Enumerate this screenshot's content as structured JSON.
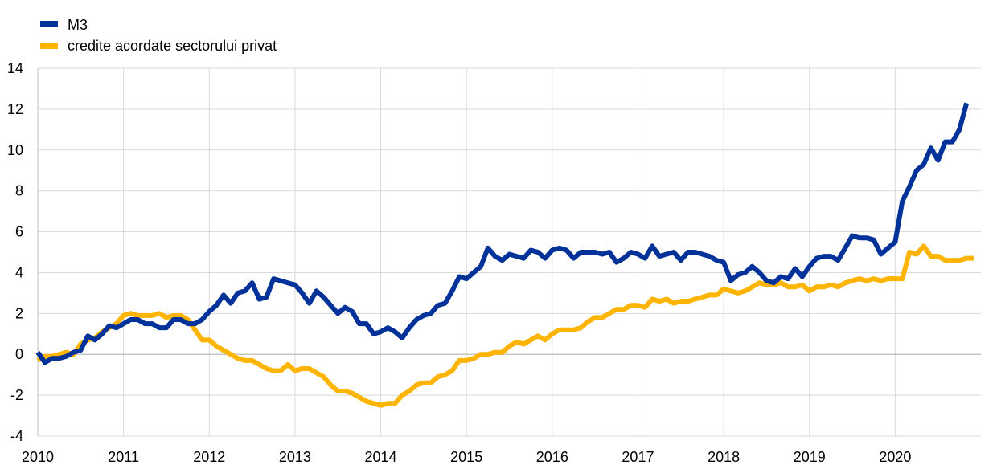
{
  "chart_data": {
    "type": "line",
    "title": "",
    "xlabel": "",
    "ylabel": "",
    "xlim": [
      "2010-01",
      "2020-12"
    ],
    "ylim": [
      -4,
      14
    ],
    "yticks": [
      -4,
      -2,
      0,
      2,
      4,
      6,
      8,
      10,
      12,
      14
    ],
    "ytick_labels": [
      "-4",
      "-2",
      "0",
      "2",
      "4",
      "6",
      "8",
      "10",
      "12",
      "14"
    ],
    "xtick_labels": [
      "2010",
      "2011",
      "2012",
      "2013",
      "2014",
      "2015",
      "2016",
      "2017",
      "2018",
      "2019",
      "2020"
    ],
    "grid": true,
    "legend_position": "top-left",
    "series": [
      {
        "name": "M3",
        "color": "#003299",
        "x": [
          "2010-01",
          "2010-02",
          "2010-03",
          "2010-04",
          "2010-05",
          "2010-06",
          "2010-07",
          "2010-08",
          "2010-09",
          "2010-10",
          "2010-11",
          "2010-12",
          "2011-01",
          "2011-02",
          "2011-03",
          "2011-04",
          "2011-05",
          "2011-06",
          "2011-07",
          "2011-08",
          "2011-09",
          "2011-10",
          "2011-11",
          "2011-12",
          "2012-01",
          "2012-02",
          "2012-03",
          "2012-04",
          "2012-05",
          "2012-06",
          "2012-07",
          "2012-08",
          "2012-09",
          "2012-10",
          "2012-11",
          "2012-12",
          "2013-01",
          "2013-02",
          "2013-03",
          "2013-04",
          "2013-05",
          "2013-06",
          "2013-07",
          "2013-08",
          "2013-09",
          "2013-10",
          "2013-11",
          "2013-12",
          "2014-01",
          "2014-02",
          "2014-03",
          "2014-04",
          "2014-05",
          "2014-06",
          "2014-07",
          "2014-08",
          "2014-09",
          "2014-10",
          "2014-11",
          "2014-12",
          "2015-01",
          "2015-02",
          "2015-03",
          "2015-04",
          "2015-05",
          "2015-06",
          "2015-07",
          "2015-08",
          "2015-09",
          "2015-10",
          "2015-11",
          "2015-12",
          "2016-01",
          "2016-02",
          "2016-03",
          "2016-04",
          "2016-05",
          "2016-06",
          "2016-07",
          "2016-08",
          "2016-09",
          "2016-10",
          "2016-11",
          "2016-12",
          "2017-01",
          "2017-02",
          "2017-03",
          "2017-04",
          "2017-05",
          "2017-06",
          "2017-07",
          "2017-08",
          "2017-09",
          "2017-10",
          "2017-11",
          "2017-12",
          "2018-01",
          "2018-02",
          "2018-03",
          "2018-04",
          "2018-05",
          "2018-06",
          "2018-07",
          "2018-08",
          "2018-09",
          "2018-10",
          "2018-11",
          "2018-12",
          "2019-01",
          "2019-02",
          "2019-03",
          "2019-04",
          "2019-05",
          "2019-06",
          "2019-07",
          "2019-08",
          "2019-09",
          "2019-10",
          "2019-11",
          "2019-12",
          "2020-01",
          "2020-02",
          "2020-03",
          "2020-04",
          "2020-05",
          "2020-06",
          "2020-07",
          "2020-08",
          "2020-09",
          "2020-10",
          "2020-11",
          "2020-12"
        ],
        "values": [
          0.1,
          -0.4,
          -0.2,
          -0.2,
          -0.1,
          0.1,
          0.2,
          0.9,
          0.7,
          1.0,
          1.4,
          1.3,
          1.5,
          1.7,
          1.7,
          1.5,
          1.5,
          1.3,
          1.3,
          1.7,
          1.7,
          1.5,
          1.5,
          1.7,
          2.1,
          2.4,
          2.9,
          2.5,
          3.0,
          3.1,
          3.5,
          2.7,
          2.8,
          3.7,
          3.6,
          3.5,
          3.4,
          3.0,
          2.5,
          3.1,
          2.8,
          2.4,
          2.0,
          2.3,
          2.1,
          1.5,
          1.5,
          1.0,
          1.1,
          1.3,
          1.1,
          0.8,
          1.3,
          1.7,
          1.9,
          2.0,
          2.4,
          2.5,
          3.1,
          3.8,
          3.7,
          4.0,
          4.3,
          5.2,
          4.8,
          4.6,
          4.9,
          4.8,
          4.7,
          5.1,
          5.0,
          4.7,
          5.1,
          5.2,
          5.1,
          4.7,
          5.0,
          5.0,
          5.0,
          4.9,
          5.0,
          4.5,
          4.7,
          5.0,
          4.9,
          4.7,
          5.3,
          4.8,
          4.9,
          5.0,
          4.6,
          5.0,
          5.0,
          4.9,
          4.8,
          4.6,
          4.5,
          3.6,
          3.9,
          4.0,
          4.3,
          4.0,
          3.6,
          3.5,
          3.8,
          3.7,
          4.2,
          3.8,
          4.3,
          4.7,
          4.8,
          4.8,
          4.6,
          5.2,
          5.8,
          5.7,
          5.7,
          5.6,
          4.9,
          5.2,
          5.5,
          7.5,
          8.2,
          9.0,
          9.3,
          10.1,
          9.5,
          10.4,
          10.4,
          11.0,
          12.3,
          null
        ]
      },
      {
        "name": "credite acordate sectorului privat",
        "color": "#FFB400",
        "x": [
          "2010-01",
          "2010-02",
          "2010-03",
          "2010-04",
          "2010-05",
          "2010-06",
          "2010-07",
          "2010-08",
          "2010-09",
          "2010-10",
          "2010-11",
          "2010-12",
          "2011-01",
          "2011-02",
          "2011-03",
          "2011-04",
          "2011-05",
          "2011-06",
          "2011-07",
          "2011-08",
          "2011-09",
          "2011-10",
          "2011-11",
          "2011-12",
          "2012-01",
          "2012-02",
          "2012-03",
          "2012-04",
          "2012-05",
          "2012-06",
          "2012-07",
          "2012-08",
          "2012-09",
          "2012-10",
          "2012-11",
          "2012-12",
          "2013-01",
          "2013-02",
          "2013-03",
          "2013-04",
          "2013-05",
          "2013-06",
          "2013-07",
          "2013-08",
          "2013-09",
          "2013-10",
          "2013-11",
          "2013-12",
          "2014-01",
          "2014-02",
          "2014-03",
          "2014-04",
          "2014-05",
          "2014-06",
          "2014-07",
          "2014-08",
          "2014-09",
          "2014-10",
          "2014-11",
          "2014-12",
          "2015-01",
          "2015-02",
          "2015-03",
          "2015-04",
          "2015-05",
          "2015-06",
          "2015-07",
          "2015-08",
          "2015-09",
          "2015-10",
          "2015-11",
          "2015-12",
          "2016-01",
          "2016-02",
          "2016-03",
          "2016-04",
          "2016-05",
          "2016-06",
          "2016-07",
          "2016-08",
          "2016-09",
          "2016-10",
          "2016-11",
          "2016-12",
          "2017-01",
          "2017-02",
          "2017-03",
          "2017-04",
          "2017-05",
          "2017-06",
          "2017-07",
          "2017-08",
          "2017-09",
          "2017-10",
          "2017-11",
          "2017-12",
          "2018-01",
          "2018-02",
          "2018-03",
          "2018-04",
          "2018-05",
          "2018-06",
          "2018-07",
          "2018-08",
          "2018-09",
          "2018-10",
          "2018-11",
          "2018-12",
          "2019-01",
          "2019-02",
          "2019-03",
          "2019-04",
          "2019-05",
          "2019-06",
          "2019-07",
          "2019-08",
          "2019-09",
          "2019-10",
          "2019-11",
          "2019-12",
          "2020-01",
          "2020-02",
          "2020-03",
          "2020-04",
          "2020-05",
          "2020-06",
          "2020-07",
          "2020-08",
          "2020-09",
          "2020-10",
          "2020-11",
          "2020-12"
        ],
        "values": [
          -0.3,
          -0.1,
          -0.1,
          0.0,
          0.1,
          0.0,
          0.5,
          0.7,
          0.8,
          1.1,
          1.3,
          1.5,
          1.9,
          2.0,
          1.9,
          1.9,
          1.9,
          2.0,
          1.8,
          1.9,
          1.9,
          1.7,
          1.2,
          0.7,
          0.7,
          0.4,
          0.2,
          0.0,
          -0.2,
          -0.3,
          -0.3,
          -0.5,
          -0.7,
          -0.8,
          -0.8,
          -0.5,
          -0.8,
          -0.7,
          -0.7,
          -0.9,
          -1.1,
          -1.5,
          -1.8,
          -1.8,
          -1.9,
          -2.1,
          -2.3,
          -2.4,
          -2.5,
          -2.4,
          -2.4,
          -2.0,
          -1.8,
          -1.5,
          -1.4,
          -1.4,
          -1.1,
          -1.0,
          -0.8,
          -0.3,
          -0.3,
          -0.2,
          0.0,
          0.0,
          0.1,
          0.1,
          0.4,
          0.6,
          0.5,
          0.7,
          0.9,
          0.7,
          1.0,
          1.2,
          1.2,
          1.2,
          1.3,
          1.6,
          1.8,
          1.8,
          2.0,
          2.2,
          2.2,
          2.4,
          2.4,
          2.3,
          2.7,
          2.6,
          2.7,
          2.5,
          2.6,
          2.6,
          2.7,
          2.8,
          2.9,
          2.9,
          3.2,
          3.1,
          3.0,
          3.1,
          3.3,
          3.5,
          3.4,
          3.4,
          3.5,
          3.3,
          3.3,
          3.4,
          3.1,
          3.3,
          3.3,
          3.4,
          3.3,
          3.5,
          3.6,
          3.7,
          3.6,
          3.7,
          3.6,
          3.7,
          3.7,
          3.7,
          5.0,
          4.9,
          5.3,
          4.8,
          4.8,
          4.6,
          4.6,
          4.6,
          4.7,
          4.7
        ]
      }
    ]
  }
}
